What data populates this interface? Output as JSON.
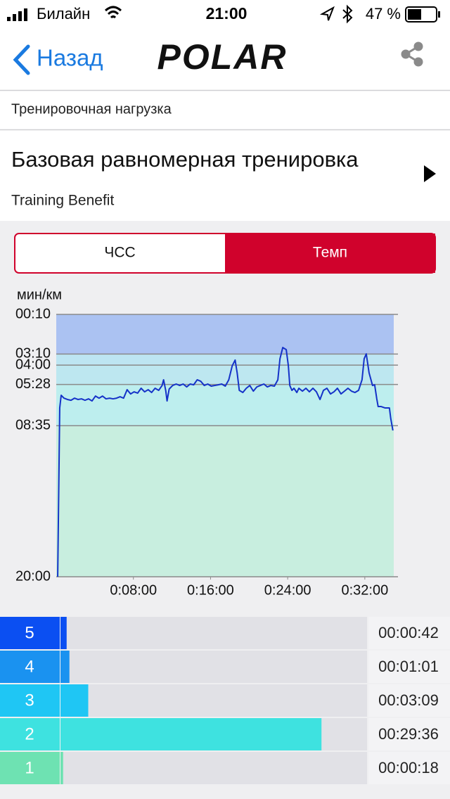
{
  "status_bar": {
    "carrier": "Билайн",
    "time": "21:00",
    "battery": "47 %"
  },
  "nav": {
    "back": "Назад",
    "logo": "POLAR"
  },
  "section": "Тренировочная нагрузка",
  "header": {
    "title": "Базовая равномерная тренировка",
    "subtitle": "Training Benefit"
  },
  "toggle": {
    "options": [
      "ЧСС",
      "Темп"
    ],
    "active": 1
  },
  "chart_data": {
    "type": "line",
    "y_label": "мин/км",
    "x": [
      0.15,
      0.36,
      0.51,
      0.8,
      1.16,
      1.53,
      1.89,
      2.25,
      2.62,
      2.98,
      3.35,
      3.71,
      4.07,
      4.44,
      4.8,
      5.16,
      5.53,
      5.89,
      6.25,
      6.62,
      6.98,
      7.35,
      7.71,
      8.07,
      8.44,
      8.8,
      9.16,
      9.53,
      9.89,
      10.25,
      10.62,
      10.98,
      11.13,
      11.35,
      11.49,
      11.71,
      12.07,
      12.44,
      12.8,
      13.16,
      13.53,
      13.89,
      14.25,
      14.62,
      14.98,
      15.35,
      15.71,
      16.07,
      16.44,
      16.8,
      17.16,
      17.53,
      17.89,
      18.25,
      18.55,
      18.76,
      18.98,
      19.35,
      19.71,
      20.07,
      20.44,
      20.8,
      21.16,
      21.53,
      21.89,
      22.25,
      22.62,
      22.98,
      23.2,
      23.49,
      23.85,
      24.07,
      24.22,
      24.44,
      24.65,
      24.95,
      25.16,
      25.53,
      25.89,
      26.25,
      26.62,
      26.98,
      27.35,
      27.71,
      28.07,
      28.44,
      28.8,
      29.16,
      29.53,
      29.89,
      30.25,
      30.62,
      30.98,
      31.35,
      31.71,
      31.93,
      32.15,
      32.44,
      32.8,
      33.02,
      33.24,
      33.38,
      33.67,
      34.11,
      34.55,
      34.69,
      34.91
    ],
    "series": [
      {
        "color": "#1532c8",
        "values": [
          20,
          7.24,
          6.28,
          6.5,
          6.6,
          6.66,
          6.5,
          6.6,
          6.55,
          6.66,
          6.55,
          6.71,
          6.34,
          6.5,
          6.34,
          6.55,
          6.5,
          6.55,
          6.5,
          6.39,
          6.5,
          5.86,
          6.18,
          6.02,
          6.12,
          5.75,
          6.02,
          5.86,
          6.07,
          5.75,
          5.91,
          5.54,
          5.11,
          5.91,
          6.71,
          5.81,
          5.54,
          5.43,
          5.54,
          5.43,
          5.65,
          5.43,
          5.49,
          5.11,
          5.22,
          5.54,
          5.43,
          5.59,
          5.54,
          5.49,
          5.43,
          5.59,
          5.11,
          4.05,
          3.62,
          4.58,
          5.91,
          6.07,
          5.75,
          5.54,
          5.97,
          5.65,
          5.54,
          5.43,
          5.65,
          5.54,
          5.59,
          5.11,
          3.52,
          2.67,
          2.83,
          4.05,
          5.54,
          5.91,
          5.75,
          6.07,
          5.75,
          5.97,
          5.75,
          6.02,
          5.75,
          6.02,
          6.6,
          5.91,
          5.75,
          6.18,
          6.02,
          5.75,
          6.18,
          5.97,
          5.75,
          5.97,
          6.07,
          5.91,
          5.11,
          3.52,
          3.15,
          4.58,
          5.54,
          5.49,
          6.55,
          7.13,
          7.13,
          7.24,
          7.24,
          8.04,
          8.94
        ]
      }
    ],
    "xlim": [
      0,
      35
    ],
    "xticks": [
      {
        "value": 8,
        "label": "0:08:00"
      },
      {
        "value": 16,
        "label": "0:16:00"
      },
      {
        "value": 24,
        "label": "0:24:00"
      },
      {
        "value": 32,
        "label": "0:32:00"
      }
    ],
    "ylim": [
      20,
      0.16667
    ],
    "yticks": [
      {
        "value": 0.16667,
        "label": "00:10"
      },
      {
        "value": 3.16667,
        "label": "03:10"
      },
      {
        "value": 4,
        "label": "04:00"
      },
      {
        "value": 5.46667,
        "label": "05:28"
      },
      {
        "value": 8.58333,
        "label": "08:35"
      },
      {
        "value": 20,
        "label": "20:00"
      }
    ],
    "band_colors": [
      "#abc2f2",
      "#bde5f2",
      "#bde7f0",
      "#bdeeee",
      "#c8eedf"
    ],
    "grid": true
  },
  "zones": {
    "rows": [
      {
        "zone": "5",
        "time": "00:00:42",
        "color": "#0b4ff2"
      },
      {
        "zone": "4",
        "time": "00:01:01",
        "color": "#1a92f0"
      },
      {
        "zone": "3",
        "time": "00:03:09",
        "color": "#1fc6f4"
      },
      {
        "zone": "2",
        "time": "00:29:36",
        "color": "#3ee2e0"
      },
      {
        "zone": "1",
        "time": "00:00:18",
        "color": "#6ee2b2"
      }
    ]
  }
}
